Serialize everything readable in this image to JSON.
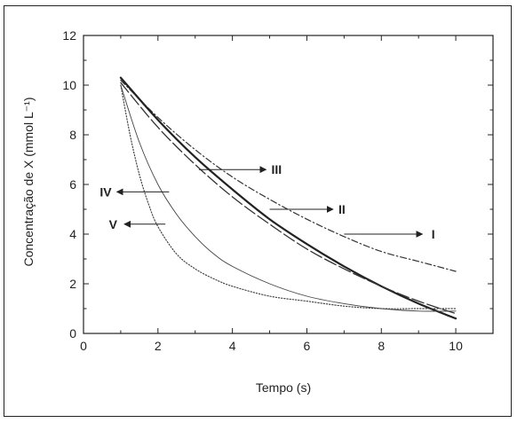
{
  "chart_data": {
    "type": "line",
    "title": "",
    "xlabel": "Tempo (s)",
    "ylabel": "Concentração de X (mmol L⁻¹)",
    "xlim": [
      0,
      11
    ],
    "ylim": [
      0,
      12
    ],
    "xticks": [
      0,
      2,
      4,
      6,
      8,
      10
    ],
    "yticks": [
      0,
      2,
      4,
      6,
      8,
      10,
      12
    ],
    "grid": false,
    "legend": "none",
    "series": [
      {
        "name": "I",
        "style": "dash-dot",
        "x": [
          1,
          2,
          3,
          4,
          5,
          6,
          7,
          8,
          9,
          10
        ],
        "y": [
          10.2,
          8.7,
          7.4,
          6.3,
          5.4,
          4.6,
          3.9,
          3.3,
          2.9,
          2.5
        ]
      },
      {
        "name": "II",
        "style": "solid",
        "x": [
          1,
          2,
          3,
          4,
          5,
          6,
          7,
          8,
          9,
          10
        ],
        "y": [
          10.3,
          8.6,
          7.1,
          5.8,
          4.6,
          3.6,
          2.7,
          1.9,
          1.2,
          0.6
        ]
      },
      {
        "name": "III",
        "style": "dash",
        "x": [
          1,
          2,
          3,
          4,
          5,
          6,
          7,
          8,
          9,
          10
        ],
        "y": [
          10.1,
          8.3,
          6.8,
          5.5,
          4.4,
          3.4,
          2.6,
          1.9,
          1.3,
          0.8
        ]
      },
      {
        "name": "IV",
        "style": "thin-solid",
        "x": [
          1,
          1.5,
          2,
          2.5,
          3,
          3.5,
          4,
          5,
          6,
          7,
          8,
          9,
          10
        ],
        "y": [
          10.0,
          7.7,
          6.0,
          4.8,
          3.9,
          3.2,
          2.7,
          2.0,
          1.5,
          1.2,
          1.0,
          0.9,
          0.9
        ]
      },
      {
        "name": "V",
        "style": "dotted",
        "x": [
          1,
          1.25,
          1.5,
          1.75,
          2,
          2.5,
          3,
          3.5,
          4,
          5,
          6,
          7,
          8,
          9,
          10
        ],
        "y": [
          10.0,
          8.0,
          6.4,
          5.2,
          4.3,
          3.2,
          2.6,
          2.2,
          1.9,
          1.5,
          1.3,
          1.1,
          1.0,
          1.0,
          1.0
        ]
      }
    ],
    "annotations": [
      {
        "label": "I",
        "arrow_from": [
          7.0,
          4.0
        ],
        "arrow_to": [
          9.1,
          4.0
        ],
        "text_at": [
          9.3,
          4.0
        ]
      },
      {
        "label": "II",
        "arrow_from": [
          5.0,
          5.0
        ],
        "arrow_to": [
          6.7,
          5.0
        ],
        "text_at": [
          6.8,
          5.0
        ]
      },
      {
        "label": "III",
        "arrow_from": [
          3.1,
          6.6
        ],
        "arrow_to": [
          4.9,
          6.6
        ],
        "text_at": [
          5.0,
          6.6
        ]
      },
      {
        "label": "IV",
        "arrow_from": [
          2.3,
          5.7
        ],
        "arrow_to": [
          0.9,
          5.7
        ],
        "text_at": [
          0.85,
          5.7
        ]
      },
      {
        "label": "V",
        "arrow_from": [
          2.2,
          4.4
        ],
        "arrow_to": [
          1.1,
          4.4
        ],
        "text_at": [
          1.0,
          4.4
        ]
      }
    ]
  }
}
